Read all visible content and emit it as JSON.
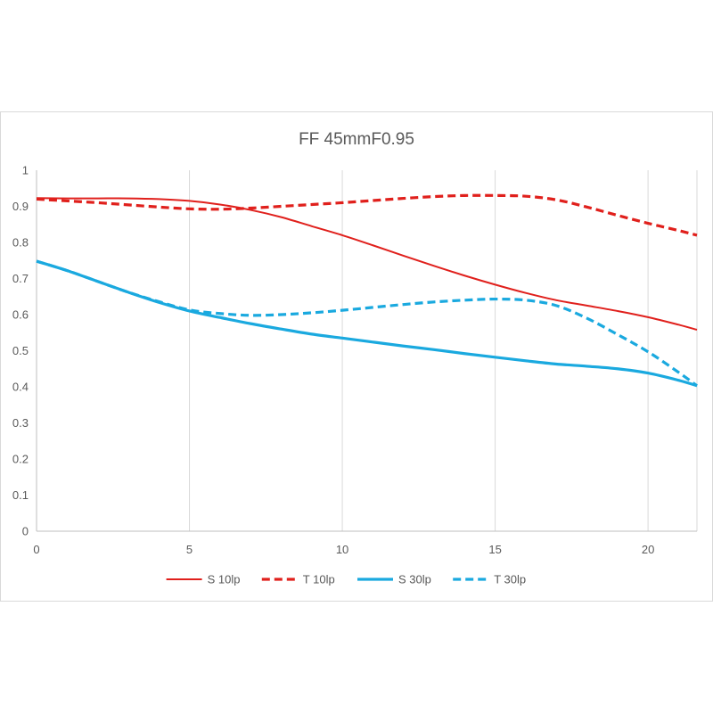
{
  "chart_data": {
    "type": "line",
    "title": "FF 45mmF0.95",
    "xlabel": "",
    "ylabel": "",
    "xlim": [
      0,
      21.6
    ],
    "ylim": [
      0,
      1
    ],
    "x_ticks": [
      0,
      5,
      10,
      15,
      20
    ],
    "x_tick_labels": [
      "0",
      "5",
      "10",
      "15",
      "20"
    ],
    "y_ticks": [
      0,
      0.1,
      0.2,
      0.3,
      0.4,
      0.5,
      0.6,
      0.7,
      0.8,
      0.9,
      1
    ],
    "y_tick_labels": [
      "0",
      "0.1",
      "0.2",
      "0.3",
      "0.4",
      "0.5",
      "0.6",
      "0.7",
      "0.8",
      "0.9",
      "1"
    ],
    "grid": "vertical",
    "legend_position": "bottom",
    "series": [
      {
        "name": "S 10lp",
        "color": "#e0201c",
        "dash": "solid",
        "width": "thin",
        "x": [
          0,
          1,
          2,
          3,
          4,
          5,
          6,
          7,
          8,
          9,
          10,
          11,
          12,
          13,
          14,
          15,
          16,
          17,
          18,
          19,
          20,
          21,
          21.6
        ],
        "y": [
          0.923,
          0.922,
          0.922,
          0.922,
          0.92,
          0.915,
          0.905,
          0.89,
          0.87,
          0.845,
          0.82,
          0.792,
          0.763,
          0.735,
          0.708,
          0.683,
          0.66,
          0.64,
          0.625,
          0.61,
          0.593,
          0.572,
          0.558
        ]
      },
      {
        "name": "T 10lp",
        "color": "#e0201c",
        "dash": "dashed",
        "width": "thick",
        "x": [
          0,
          1,
          2,
          3,
          4,
          5,
          6,
          7,
          8,
          9,
          10,
          11,
          12,
          13,
          14,
          15,
          16,
          17,
          18,
          19,
          20,
          21,
          21.6
        ],
        "y": [
          0.92,
          0.915,
          0.91,
          0.904,
          0.898,
          0.893,
          0.892,
          0.895,
          0.9,
          0.905,
          0.91,
          0.916,
          0.922,
          0.927,
          0.93,
          0.93,
          0.928,
          0.918,
          0.898,
          0.875,
          0.853,
          0.833,
          0.82
        ]
      },
      {
        "name": "S 30lp",
        "color": "#1aa9df",
        "dash": "solid",
        "width": "thick",
        "x": [
          0,
          1,
          2,
          3,
          4,
          5,
          6,
          7,
          8,
          9,
          10,
          11,
          12,
          13,
          14,
          15,
          16,
          17,
          18,
          19,
          20,
          21,
          21.6
        ],
        "y": [
          0.748,
          0.722,
          0.692,
          0.662,
          0.634,
          0.61,
          0.592,
          0.575,
          0.56,
          0.546,
          0.535,
          0.524,
          0.513,
          0.503,
          0.492,
          0.482,
          0.472,
          0.463,
          0.457,
          0.45,
          0.438,
          0.418,
          0.403
        ]
      },
      {
        "name": "T 30lp",
        "color": "#1aa9df",
        "dash": "dashed",
        "width": "thick",
        "x": [
          0,
          1,
          2,
          3,
          4,
          5,
          6,
          7,
          8,
          9,
          10,
          11,
          12,
          13,
          14,
          15,
          16,
          17,
          18,
          19,
          20,
          21,
          21.6
        ],
        "y": [
          0.748,
          0.722,
          0.692,
          0.662,
          0.636,
          0.613,
          0.603,
          0.598,
          0.6,
          0.605,
          0.612,
          0.62,
          0.628,
          0.635,
          0.64,
          0.643,
          0.64,
          0.625,
          0.59,
          0.545,
          0.497,
          0.44,
          0.403
        ]
      }
    ]
  }
}
